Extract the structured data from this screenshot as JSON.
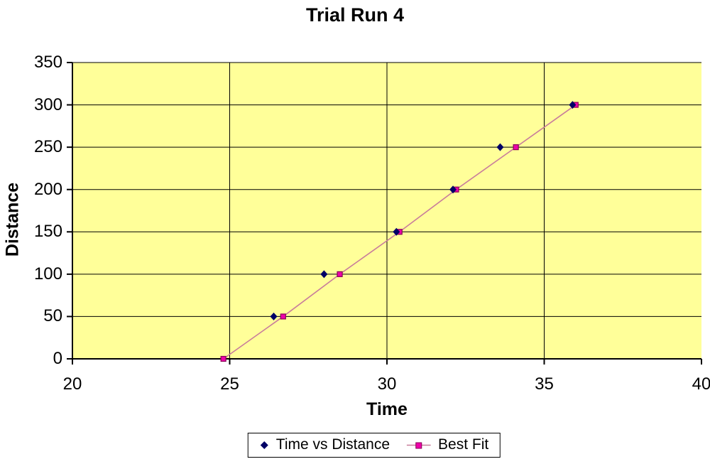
{
  "title": "Trial Run 4",
  "axes": {
    "x_label": "Time",
    "y_label": "Distance"
  },
  "legend": {
    "items": [
      {
        "label": "Time vs Distance",
        "marker": "diamond-icon"
      },
      {
        "label": "Best Fit",
        "marker": "line-square-icon"
      }
    ]
  },
  "colors": {
    "plot_background": "#FFFF99",
    "gridline": "#000000",
    "axis_line": "#000000",
    "diamond_marker": "#000066",
    "square_marker_fill": "#EE00AA",
    "square_marker_stroke": "#880055",
    "best_fit_line": "#C87C9B",
    "text": "#000000"
  },
  "chart_data": {
    "type": "scatter",
    "title": "Trial Run 4",
    "xlabel": "Time",
    "ylabel": "Distance",
    "xlim": [
      20,
      40
    ],
    "ylim": [
      0,
      350
    ],
    "x_ticks": [
      20,
      25,
      30,
      35,
      40
    ],
    "y_ticks": [
      0,
      50,
      100,
      150,
      200,
      250,
      300,
      350
    ],
    "grid": {
      "horizontal": "at every y tick",
      "vertical": "at inner x ticks 25, 30, 35"
    },
    "legend_position": "bottom-center",
    "plot_bg": "#FFFF99",
    "series": [
      {
        "name": "Time vs Distance",
        "render": "markers-only",
        "marker": "diamond",
        "points": [
          [
            26.4,
            50
          ],
          [
            28.0,
            100
          ],
          [
            30.3,
            150
          ],
          [
            32.1,
            200
          ],
          [
            33.6,
            250
          ],
          [
            35.9,
            300
          ]
        ]
      },
      {
        "name": "Best Fit",
        "render": "line-with-markers",
        "marker": "square",
        "points": [
          [
            24.8,
            0
          ],
          [
            26.7,
            50
          ],
          [
            28.5,
            100
          ],
          [
            30.4,
            150
          ],
          [
            32.2,
            200
          ],
          [
            34.1,
            250
          ],
          [
            36.0,
            300
          ]
        ]
      }
    ]
  }
}
